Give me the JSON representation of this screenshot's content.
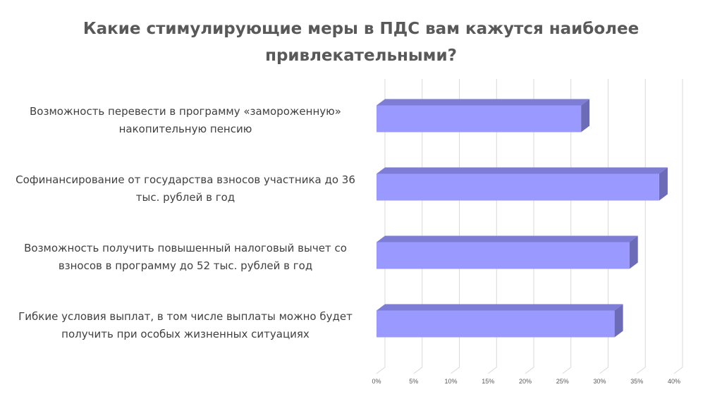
{
  "chart_data": {
    "type": "bar",
    "orientation": "horizontal",
    "title": "Какие стимулирующие меры в ПДС вам кажутся наиболее привлекательными?",
    "categories": [
      "Возможность перевести в программу «замороженную» накопительную пенсию",
      "Софинансирование от государства взносов участника до 36 тыс. рублей в год",
      "Возможность получить повышенный налоговый вычет со взносов в программу до 52 тыс. рублей в год",
      "Гибкие условия выплат, в том числе выплаты можно будет получить при особых жизненных ситуациях"
    ],
    "values": [
      27.5,
      38,
      34,
      32
    ],
    "xlim": [
      0,
      40
    ],
    "tick_values": [
      0,
      5,
      10,
      15,
      20,
      25,
      30,
      35,
      40
    ],
    "tick_labels": [
      "0%",
      "5%",
      "10%",
      "15%",
      "20%",
      "25%",
      "30%",
      "35%",
      "40%"
    ],
    "grid": true,
    "style": "3d",
    "colors": {
      "bar_front": "#9999ff",
      "bar_top": "#7d7dd6",
      "bar_side": "#6b6bb8",
      "grid": "#d9d9d9",
      "tick_text": "#595959"
    }
  }
}
